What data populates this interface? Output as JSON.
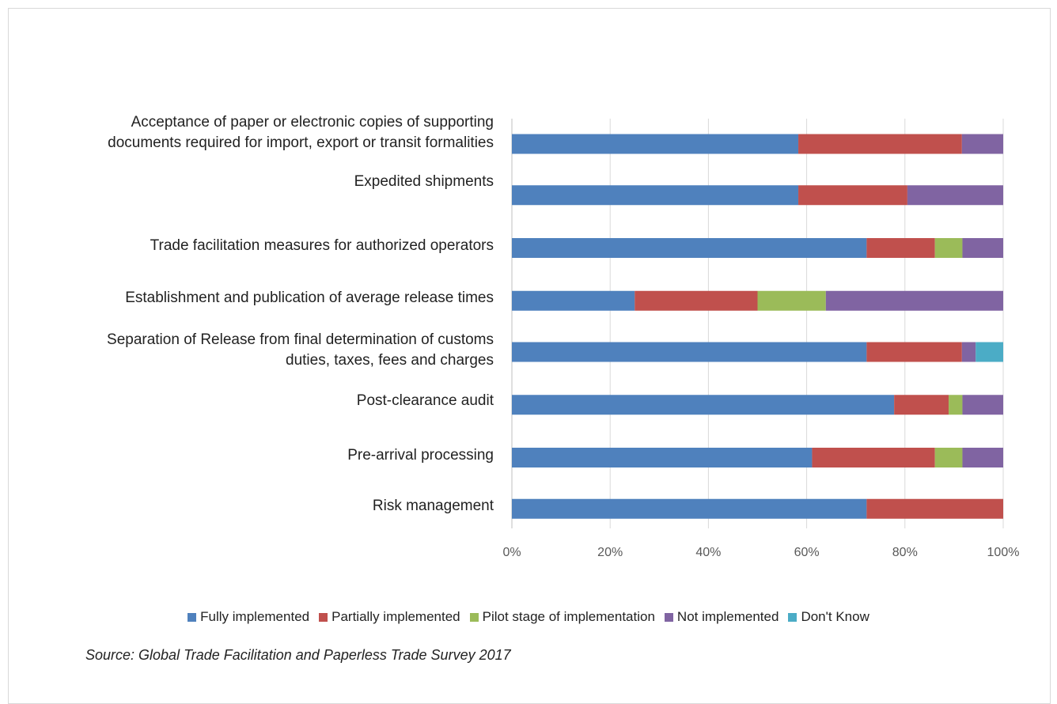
{
  "chart_data": {
    "type": "bar",
    "orientation": "horizontal",
    "stacked": "percent",
    "categories": [
      "Acceptance of paper or electronic copies of supporting\ndocuments required for import, export or transit formalities",
      "Expedited shipments",
      "Trade facilitation measures for authorized operators",
      "Establishment and publication of average release times",
      "Separation of Release from final determination of customs\nduties, taxes, fees and charges",
      "Post-clearance audit",
      "Pre-arrival processing",
      "Risk management"
    ],
    "series": [
      {
        "name": "Fully implemented",
        "color": "#4f81bd",
        "values": [
          58.3,
          58.3,
          72.2,
          25.0,
          72.2,
          77.8,
          61.1,
          72.2
        ]
      },
      {
        "name": "Partially implemented",
        "color": "#c0504d",
        "values": [
          33.3,
          22.2,
          13.9,
          25.0,
          19.4,
          11.1,
          25.0,
          27.8
        ]
      },
      {
        "name": "Pilot stage of implementation",
        "color": "#9bbb59",
        "values": [
          0,
          0,
          5.6,
          13.9,
          0,
          2.8,
          5.6,
          0
        ]
      },
      {
        "name": "Not implemented",
        "color": "#8064a2",
        "values": [
          8.4,
          19.5,
          8.3,
          36.1,
          2.8,
          8.3,
          8.3,
          0
        ]
      },
      {
        "name": "Don't Know",
        "color": "#4bacc6",
        "values": [
          0,
          0,
          0,
          0,
          5.6,
          0,
          0,
          0
        ]
      }
    ],
    "xticks": [
      "0%",
      "20%",
      "40%",
      "60%",
      "80%",
      "100%"
    ],
    "xlim": [
      0,
      100
    ],
    "grid": true,
    "legend_position": "bottom"
  },
  "source": "Source:  Global Trade Facilitation and Paperless Trade Survey 2017"
}
